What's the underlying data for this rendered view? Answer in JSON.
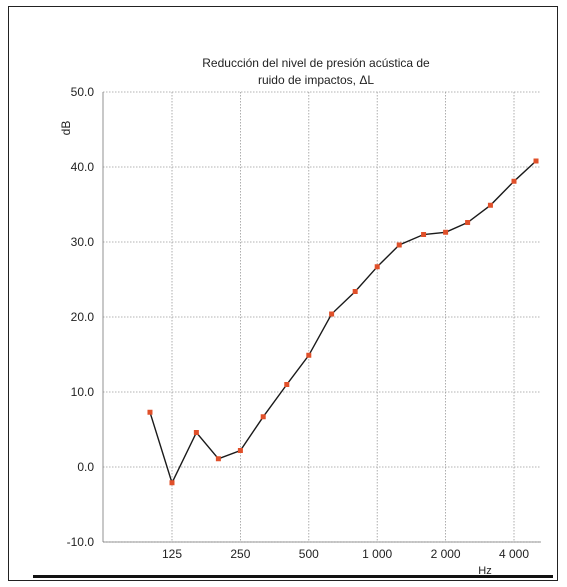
{
  "chart_data": {
    "type": "line",
    "title_line1": "Reducción del nivel de presión acústica de",
    "title_line2": "ruido de impactos, ΔL",
    "ylabel": "dB",
    "xlabel": "Hz",
    "ylim": [
      -10,
      50
    ],
    "y_ticks": [
      "50.0",
      "40.0",
      "30.0",
      "20.0",
      "10.0",
      "0.0",
      "-10.0"
    ],
    "x_ticks": [
      "125",
      "250",
      "500",
      "1 000",
      "2 000",
      "4 000"
    ],
    "x_scale": "log",
    "grid": true,
    "series": [
      {
        "x": [
          100,
          125,
          160,
          200,
          250,
          315,
          400,
          500,
          630,
          800,
          1000,
          1250,
          1600,
          2000,
          2500,
          3150,
          4000,
          5000
        ],
        "values": [
          7.3,
          -2.1,
          4.6,
          1.1,
          2.2,
          6.7,
          11.0,
          14.9,
          20.4,
          23.4,
          26.7,
          29.6,
          31.0,
          31.3,
          32.6,
          34.9,
          38.1,
          40.8
        ]
      }
    ],
    "colors": {
      "line": "#1a1a1a",
      "marker": "#e0502a",
      "grid": "#9a9a9a"
    }
  }
}
